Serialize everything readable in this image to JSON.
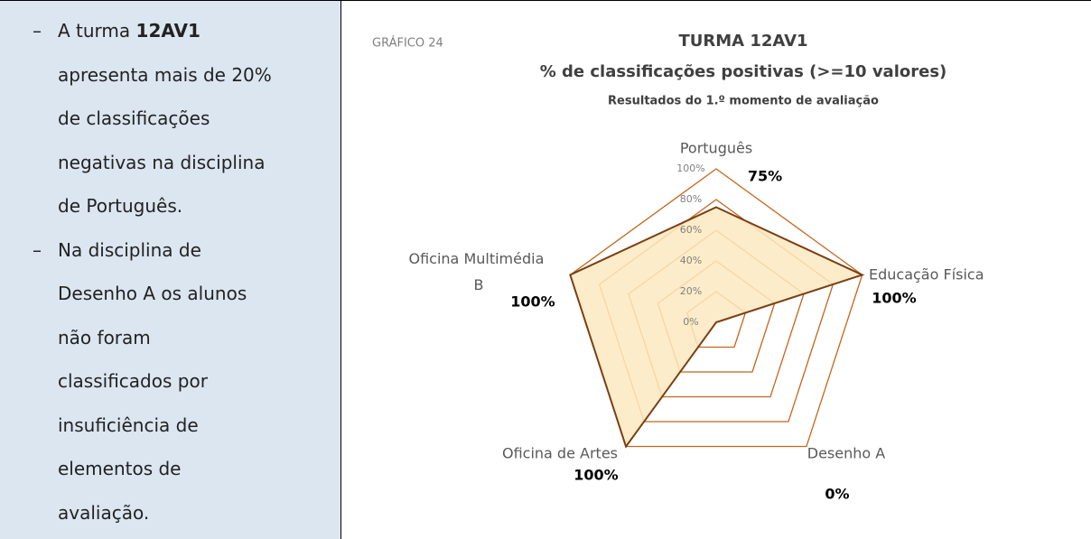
{
  "bullets": [
    {
      "text": "A turma",
      "bold": "12AV1",
      "lines": [
        "apresenta mais de 20%",
        "de classificações",
        "negativas na disciplina",
        "de Português."
      ]
    },
    {
      "text": "Na disciplina de",
      "lines": [
        "Desenho A os alunos",
        "não foram",
        "classificados por",
        "insuficiência de",
        "elementos de",
        "avaliação."
      ]
    }
  ],
  "bullet_symbol": "–",
  "chart_data": {
    "type": "radar",
    "label": "GRÁFICO 24",
    "title": "TURMA 12AV1",
    "subtitle": "% de classificações positivas (>=10 valores)",
    "subtitle2": "Resultados do 1.º momento de avaliação",
    "categories": [
      "Português",
      "Educação Física",
      "Desenho A",
      "Oficina de Artes",
      "Oficina Multimédia B"
    ],
    "values": [
      75,
      100,
      0,
      100,
      100
    ],
    "value_labels": [
      "75%",
      "100%",
      "0%",
      "100%",
      "100%"
    ],
    "ylim": [
      0,
      100
    ],
    "yticks": [
      {
        "value": 0,
        "label": "0%"
      },
      {
        "value": 20,
        "label": "20%"
      },
      {
        "value": 40,
        "label": "40%"
      },
      {
        "value": 60,
        "label": "60%"
      },
      {
        "value": 80,
        "label": "80%"
      },
      {
        "value": 100,
        "label": "100%"
      }
    ],
    "color": "#fde9bf",
    "line_color": "#7b3f12",
    "grid_color": "#c5651b"
  }
}
